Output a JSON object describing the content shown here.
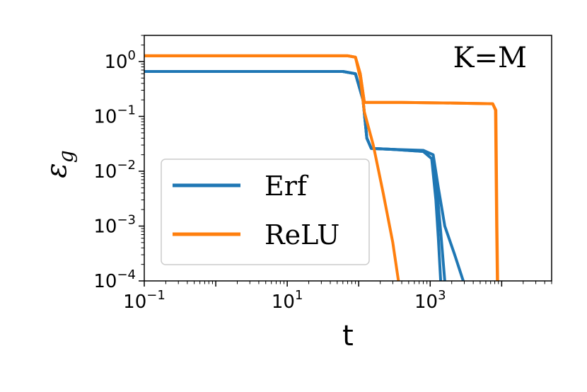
{
  "chart_data": {
    "type": "line",
    "title": "",
    "annotation": "K=M",
    "xlabel": "t",
    "ylabel_base": "ε",
    "ylabel_sub": "g",
    "x_scale": "log",
    "y_scale": "log",
    "xlim": [
      0.1,
      50000
    ],
    "ylim": [
      0.0001,
      3.0
    ],
    "grid": false,
    "legend_position": "center-left",
    "x_ticks": [
      {
        "value": 0.1,
        "base": "10",
        "exp": "−1"
      },
      {
        "value": 10,
        "base": "10",
        "exp": "1"
      },
      {
        "value": 1000,
        "base": "10",
        "exp": "3"
      }
    ],
    "y_ticks": [
      {
        "value": 1,
        "base": "10",
        "exp": "0"
      },
      {
        "value": 0.1,
        "base": "10",
        "exp": "−1"
      },
      {
        "value": 0.01,
        "base": "10",
        "exp": "−2"
      },
      {
        "value": 0.001,
        "base": "10",
        "exp": "−3"
      },
      {
        "value": 0.0001,
        "base": "10",
        "exp": "−4"
      }
    ],
    "series": [
      {
        "name": "Erf",
        "color": "#1f77b4",
        "lines": [
          {
            "points": [
              [
                0.1,
                0.66
              ],
              [
                60,
                0.66
              ],
              [
                90,
                0.6
              ],
              [
                115,
                0.2
              ],
              [
                130,
                0.04
              ],
              [
                150,
                0.026
              ],
              [
                300,
                0.025
              ],
              [
                800,
                0.024
              ],
              [
                1100,
                0.02
              ],
              [
                1300,
                0.005
              ],
              [
                1600,
                0.001
              ],
              [
                2200,
                0.0003
              ],
              [
                2900,
                0.0001
              ]
            ]
          },
          {
            "points": [
              [
                0.1,
                0.66
              ],
              [
                60,
                0.66
              ],
              [
                90,
                0.6
              ],
              [
                115,
                0.2
              ],
              [
                130,
                0.04
              ],
              [
                150,
                0.026
              ],
              [
                300,
                0.025
              ],
              [
                800,
                0.023
              ],
              [
                1050,
                0.017
              ],
              [
                1250,
                0.004
              ],
              [
                1400,
                0.0008
              ],
              [
                1600,
                0.0001
              ]
            ]
          },
          {
            "points": [
              [
                0.1,
                0.66
              ],
              [
                60,
                0.66
              ],
              [
                90,
                0.6
              ],
              [
                115,
                0.2
              ],
              [
                130,
                0.04
              ],
              [
                150,
                0.026
              ],
              [
                300,
                0.025
              ],
              [
                800,
                0.023
              ],
              [
                1050,
                0.017
              ],
              [
                1200,
                0.003
              ],
              [
                1300,
                0.0006
              ],
              [
                1400,
                0.0001
              ]
            ]
          }
        ]
      },
      {
        "name": "ReLU",
        "color": "#ff7f0e",
        "lines": [
          {
            "points": [
              [
                0.1,
                1.27
              ],
              [
                70,
                1.27
              ],
              [
                90,
                1.2
              ],
              [
                105,
                0.6
              ],
              [
                120,
                0.18
              ],
              [
                400,
                0.18
              ],
              [
                2000,
                0.175
              ],
              [
                7500,
                0.17
              ],
              [
                8200,
                0.13
              ],
              [
                8500,
                0.001
              ],
              [
                8700,
                0.0001
              ]
            ]
          },
          {
            "points": [
              [
                0.1,
                1.27
              ],
              [
                70,
                1.27
              ],
              [
                90,
                1.2
              ],
              [
                105,
                0.6
              ],
              [
                120,
                0.18
              ],
              [
                400,
                0.18
              ],
              [
                2000,
                0.175
              ],
              [
                7500,
                0.17
              ],
              [
                8300,
                0.13
              ],
              [
                8600,
                0.001
              ],
              [
                8800,
                0.0001
              ]
            ]
          },
          {
            "points": [
              [
                0.1,
                1.27
              ],
              [
                70,
                1.27
              ],
              [
                90,
                1.2
              ],
              [
                105,
                0.5
              ],
              [
                120,
                0.12
              ],
              [
                160,
                0.03
              ],
              [
                220,
                0.004
              ],
              [
                300,
                0.0005
              ],
              [
                360,
                0.0001
              ]
            ]
          }
        ]
      }
    ]
  }
}
